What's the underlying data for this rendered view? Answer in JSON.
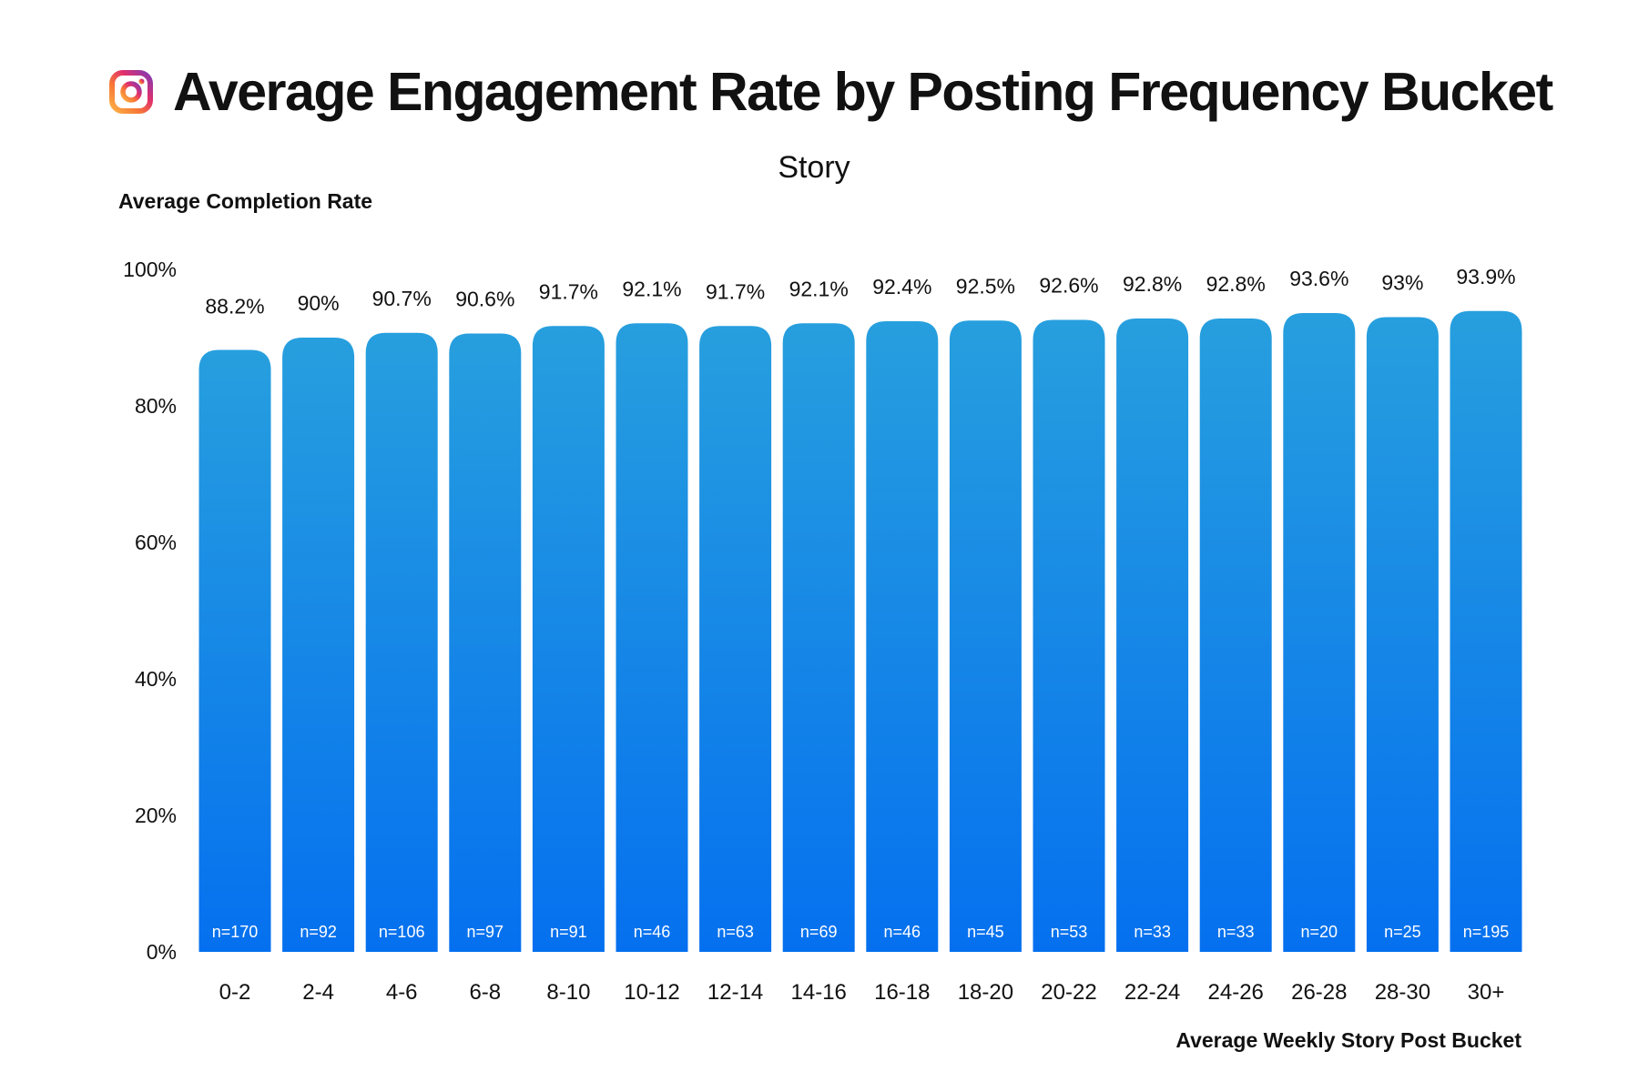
{
  "header": {
    "title": "Average Engagement Rate by Posting Frequency Bucket",
    "logo_icon": "instagram-logo-icon"
  },
  "colors": {
    "bar_top": "#279fde",
    "bar_bottom": "#0570ef",
    "logo_gradient": [
      "#fcaf45",
      "#f77737",
      "#e1306c",
      "#833ab4"
    ]
  },
  "chart_data": {
    "type": "bar",
    "title": "Story",
    "ylabel": "Average Completion Rate",
    "xlabel": "Average Weekly Story Post Bucket",
    "ylim": [
      0,
      100
    ],
    "yticks": [
      0,
      20,
      40,
      60,
      80,
      100
    ],
    "ytick_labels": [
      "0%",
      "20%",
      "40%",
      "60%",
      "80%",
      "100%"
    ],
    "grid": false,
    "categories": [
      "0-2",
      "2-4",
      "4-6",
      "6-8",
      "8-10",
      "10-12",
      "12-14",
      "14-16",
      "16-18",
      "18-20",
      "20-22",
      "22-24",
      "24-26",
      "26-28",
      "28-30",
      "30+"
    ],
    "values": [
      88.2,
      90,
      90.7,
      90.6,
      91.7,
      92.1,
      91.7,
      92.1,
      92.4,
      92.5,
      92.6,
      92.8,
      92.8,
      93.6,
      93,
      93.9
    ],
    "value_labels": [
      "88.2%",
      "90%",
      "90.7%",
      "90.6%",
      "91.7%",
      "92.1%",
      "91.7%",
      "92.1%",
      "92.4%",
      "92.5%",
      "92.6%",
      "92.8%",
      "92.8%",
      "93.6%",
      "93%",
      "93.9%"
    ],
    "sample_sizes": [
      "n=170",
      "n=92",
      "n=106",
      "n=97",
      "n=91",
      "n=46",
      "n=63",
      "n=69",
      "n=46",
      "n=45",
      "n=53",
      "n=33",
      "n=33",
      "n=20",
      "n=25",
      "n=195"
    ]
  }
}
